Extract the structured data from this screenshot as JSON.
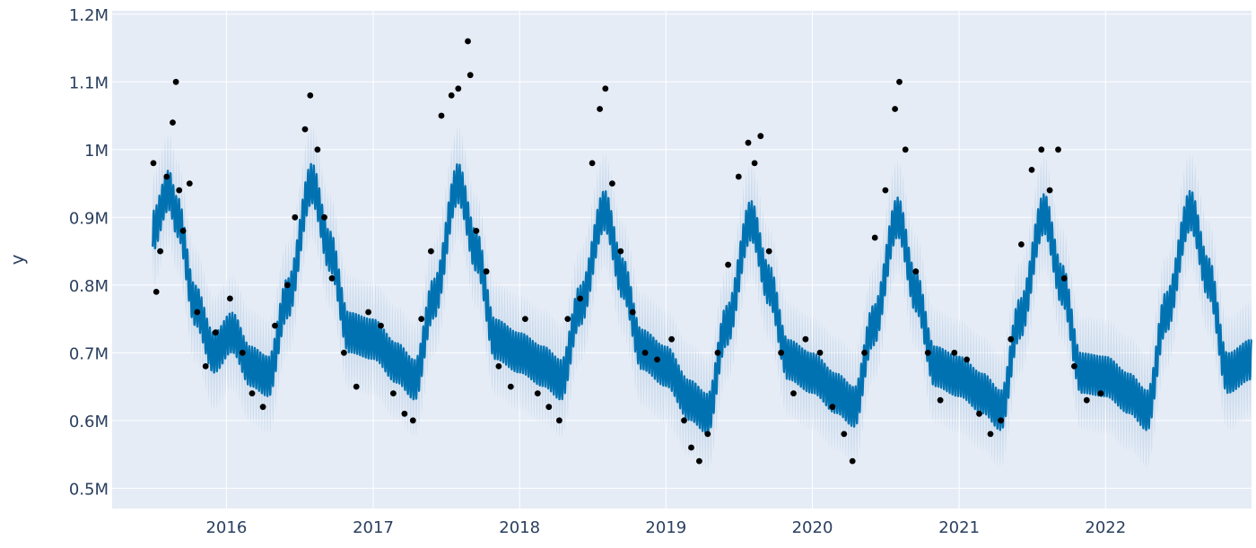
{
  "chart_data": {
    "type": "scatter",
    "title": "",
    "xlabel": "",
    "ylabel": "y",
    "x_tick_labels": [
      "2016",
      "2017",
      "2018",
      "2019",
      "2020",
      "2021",
      "2022"
    ],
    "y_tick_labels": [
      "0.5M",
      "0.6M",
      "0.7M",
      "0.8M",
      "0.9M",
      "1M",
      "1.1M",
      "1.2M"
    ],
    "y_ticks": [
      500000,
      600000,
      700000,
      800000,
      900000,
      1000000,
      1100000,
      1200000
    ],
    "xlim": [
      "2015-03-22",
      "2022-12-31"
    ],
    "ylim": [
      470000,
      1205000
    ],
    "grid": true,
    "legend": "none",
    "colors": {
      "plot_bg": "#e5ecf6",
      "grid": "#ffffff",
      "forecast": "#0072b2",
      "uncertainty": "#b9cfe6",
      "observed": "#000000"
    },
    "series": [
      {
        "kind": "forecast_line",
        "points": [
          [
            "2015-07-01",
            880000
          ],
          [
            "2015-08-10",
            940000
          ],
          [
            "2015-09-01",
            900000
          ],
          [
            "2015-10-15",
            770000
          ],
          [
            "2015-12-01",
            700000
          ],
          [
            "2016-01-15",
            730000
          ],
          [
            "2016-03-01",
            680000
          ],
          [
            "2016-04-15",
            665000
          ],
          [
            "2016-06-01",
            780000
          ],
          [
            "2016-08-01",
            950000
          ],
          [
            "2016-09-15",
            850000
          ],
          [
            "2016-11-01",
            730000
          ],
          [
            "2017-01-01",
            720000
          ],
          [
            "2017-03-01",
            685000
          ],
          [
            "2017-04-15",
            660000
          ],
          [
            "2017-06-01",
            780000
          ],
          [
            "2017-08-01",
            950000
          ],
          [
            "2017-09-15",
            850000
          ],
          [
            "2017-11-01",
            720000
          ],
          [
            "2018-01-01",
            700000
          ],
          [
            "2018-03-01",
            680000
          ],
          [
            "2018-04-15",
            660000
          ],
          [
            "2018-06-01",
            770000
          ],
          [
            "2018-08-01",
            910000
          ],
          [
            "2018-09-15",
            810000
          ],
          [
            "2018-11-01",
            705000
          ],
          [
            "2019-01-01",
            680000
          ],
          [
            "2019-03-01",
            630000
          ],
          [
            "2019-04-15",
            610000
          ],
          [
            "2019-06-01",
            740000
          ],
          [
            "2019-08-01",
            895000
          ],
          [
            "2019-09-15",
            800000
          ],
          [
            "2019-11-01",
            690000
          ],
          [
            "2020-01-01",
            670000
          ],
          [
            "2020-03-01",
            640000
          ],
          [
            "2020-04-15",
            620000
          ],
          [
            "2020-06-01",
            740000
          ],
          [
            "2020-08-01",
            900000
          ],
          [
            "2020-09-15",
            790000
          ],
          [
            "2020-11-01",
            680000
          ],
          [
            "2021-01-01",
            665000
          ],
          [
            "2021-03-01",
            640000
          ],
          [
            "2021-04-15",
            615000
          ],
          [
            "2021-06-01",
            750000
          ],
          [
            "2021-08-01",
            905000
          ],
          [
            "2021-09-15",
            800000
          ],
          [
            "2021-11-01",
            670000
          ],
          [
            "2022-01-01",
            665000
          ],
          [
            "2022-03-01",
            640000
          ],
          [
            "2022-04-15",
            615000
          ],
          [
            "2022-06-01",
            760000
          ],
          [
            "2022-08-01",
            910000
          ],
          [
            "2022-09-15",
            810000
          ],
          [
            "2022-11-01",
            670000
          ],
          [
            "2022-12-31",
            690000
          ]
        ],
        "weekly_amplitude": 30000,
        "uncertainty_halfwidth": 55000
      },
      {
        "kind": "observed_points",
        "points": [
          [
            "2015-07-03",
            980000
          ],
          [
            "2015-07-10",
            790000
          ],
          [
            "2015-07-20",
            850000
          ],
          [
            "2015-08-05",
            960000
          ],
          [
            "2015-08-20",
            1040000
          ],
          [
            "2015-08-28",
            1100000
          ],
          [
            "2015-09-05",
            940000
          ],
          [
            "2015-09-15",
            880000
          ],
          [
            "2015-10-01",
            950000
          ],
          [
            "2015-10-20",
            760000
          ],
          [
            "2015-11-10",
            680000
          ],
          [
            "2015-12-05",
            730000
          ],
          [
            "2016-01-10",
            780000
          ],
          [
            "2016-02-10",
            700000
          ],
          [
            "2016-03-05",
            640000
          ],
          [
            "2016-04-01",
            620000
          ],
          [
            "2016-05-01",
            740000
          ],
          [
            "2016-06-01",
            800000
          ],
          [
            "2016-06-20",
            900000
          ],
          [
            "2016-07-15",
            1030000
          ],
          [
            "2016-07-28",
            1080000
          ],
          [
            "2016-08-15",
            1000000
          ],
          [
            "2016-09-01",
            900000
          ],
          [
            "2016-09-20",
            810000
          ],
          [
            "2016-10-20",
            700000
          ],
          [
            "2016-11-20",
            650000
          ],
          [
            "2016-12-20",
            760000
          ],
          [
            "2017-01-20",
            740000
          ],
          [
            "2017-02-20",
            640000
          ],
          [
            "2017-03-20",
            610000
          ],
          [
            "2017-04-10",
            600000
          ],
          [
            "2017-05-01",
            750000
          ],
          [
            "2017-05-25",
            850000
          ],
          [
            "2017-06-20",
            1050000
          ],
          [
            "2017-07-15",
            1080000
          ],
          [
            "2017-08-01",
            1090000
          ],
          [
            "2017-08-25",
            1160000
          ],
          [
            "2017-08-31",
            1110000
          ],
          [
            "2017-09-15",
            880000
          ],
          [
            "2017-10-10",
            820000
          ],
          [
            "2017-11-10",
            680000
          ],
          [
            "2017-12-10",
            650000
          ],
          [
            "2018-01-15",
            750000
          ],
          [
            "2018-02-15",
            640000
          ],
          [
            "2018-03-15",
            620000
          ],
          [
            "2018-04-10",
            600000
          ],
          [
            "2018-05-01",
            750000
          ],
          [
            "2018-06-01",
            780000
          ],
          [
            "2018-07-01",
            980000
          ],
          [
            "2018-07-20",
            1060000
          ],
          [
            "2018-08-03",
            1090000
          ],
          [
            "2018-08-20",
            950000
          ],
          [
            "2018-09-10",
            850000
          ],
          [
            "2018-10-10",
            760000
          ],
          [
            "2018-11-10",
            700000
          ],
          [
            "2018-12-10",
            690000
          ],
          [
            "2019-01-15",
            720000
          ],
          [
            "2019-02-15",
            600000
          ],
          [
            "2019-03-05",
            560000
          ],
          [
            "2019-03-25",
            540000
          ],
          [
            "2019-04-15",
            580000
          ],
          [
            "2019-05-10",
            700000
          ],
          [
            "2019-06-05",
            830000
          ],
          [
            "2019-07-01",
            960000
          ],
          [
            "2019-07-25",
            1010000
          ],
          [
            "2019-08-10",
            980000
          ],
          [
            "2019-08-25",
            1020000
          ],
          [
            "2019-09-15",
            850000
          ],
          [
            "2019-10-15",
            700000
          ],
          [
            "2019-11-15",
            640000
          ],
          [
            "2019-12-15",
            720000
          ],
          [
            "2020-01-20",
            700000
          ],
          [
            "2020-02-20",
            620000
          ],
          [
            "2020-03-20",
            580000
          ],
          [
            "2020-04-10",
            540000
          ],
          [
            "2020-05-10",
            700000
          ],
          [
            "2020-06-05",
            870000
          ],
          [
            "2020-07-01",
            940000
          ],
          [
            "2020-07-25",
            1060000
          ],
          [
            "2020-08-05",
            1100000
          ],
          [
            "2020-08-20",
            1000000
          ],
          [
            "2020-09-15",
            820000
          ],
          [
            "2020-10-15",
            700000
          ],
          [
            "2020-11-15",
            630000
          ],
          [
            "2020-12-20",
            700000
          ],
          [
            "2021-01-20",
            690000
          ],
          [
            "2021-02-20",
            610000
          ],
          [
            "2021-03-20",
            580000
          ],
          [
            "2021-04-15",
            600000
          ],
          [
            "2021-05-10",
            720000
          ],
          [
            "2021-06-05",
            860000
          ],
          [
            "2021-07-01",
            970000
          ],
          [
            "2021-07-25",
            1000000
          ],
          [
            "2021-08-15",
            940000
          ],
          [
            "2021-09-05",
            1000000
          ],
          [
            "2021-09-20",
            810000
          ],
          [
            "2021-10-15",
            680000
          ],
          [
            "2021-11-15",
            630000
          ],
          [
            "2021-12-20",
            640000
          ]
        ]
      }
    ]
  }
}
